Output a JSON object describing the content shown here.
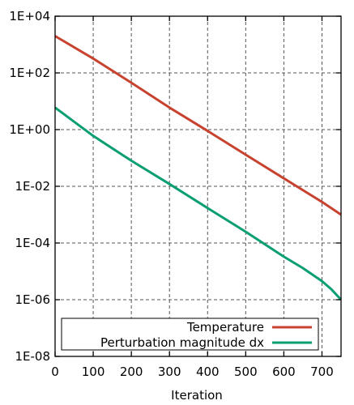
{
  "chart_data": {
    "type": "line",
    "xlabel": "Iteration",
    "ylabel": "",
    "title": "",
    "xlim": [
      0,
      750
    ],
    "ylim": [
      1e-08,
      10000
    ],
    "yscale": "log",
    "grid": true,
    "legend_position": "bottom",
    "xticks": [
      0,
      100,
      200,
      300,
      400,
      500,
      600,
      700
    ],
    "xtick_labels": [
      "0",
      "100",
      "200",
      "300",
      "400",
      "500",
      "600",
      "700"
    ],
    "yticks": [
      1e-08,
      1e-06,
      0.0001,
      0.01,
      1,
      100,
      10000
    ],
    "ytick_labels": [
      "1E-08",
      "1E-06",
      "1E-04",
      "1E-02",
      "1E+00",
      "1E+02",
      "1E+04"
    ],
    "series": [
      {
        "name": "Temperature",
        "color": "#c8432f",
        "x": [
          0,
          100,
          200,
          300,
          400,
          500,
          600,
          700,
          750
        ],
        "y": [
          2000,
          320,
          45,
          6,
          0.9,
          0.13,
          0.019,
          0.0028,
          0.001
        ]
      },
      {
        "name": "Perturbation magnitude dx",
        "color": "#0a9e73",
        "x": [
          0,
          100,
          200,
          300,
          400,
          500,
          600,
          650,
          700,
          725,
          750
        ],
        "y": [
          6,
          0.6,
          0.08,
          0.012,
          0.0017,
          0.00025,
          3.3e-05,
          1.3e-05,
          4.5e-06,
          2.3e-06,
          1e-06
        ]
      }
    ]
  }
}
